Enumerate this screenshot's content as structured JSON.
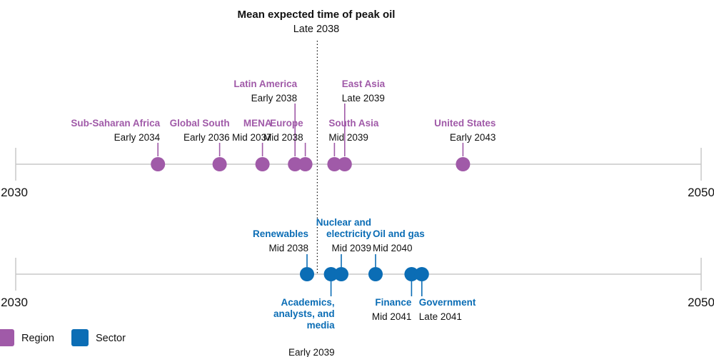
{
  "colors": {
    "region": "#a05aa8",
    "sector": "#0b6db5",
    "axis": "#c8c8c8",
    "text": "#111111"
  },
  "chart_data": {
    "type": "scatter",
    "title": "Mean expected time of peak oil",
    "subtitle": "Late 2038",
    "reference_value": 2038.8,
    "xlim": [
      2030,
      2050
    ],
    "axis_labels": [
      "2030",
      "2050"
    ],
    "legend": [
      {
        "name": "Region",
        "color": "#a05aa8"
      },
      {
        "name": "Sector",
        "color": "#0b6db5"
      }
    ],
    "series": [
      {
        "name": "Region",
        "points": [
          {
            "name": "Sub-Saharan Africa",
            "time": "Early 2034",
            "x": 2034.15
          },
          {
            "name": "Global South",
            "time": "Early 2036",
            "x": 2035.95
          },
          {
            "name": "MENA",
            "time": "Mid 2037",
            "x": 2037.2
          },
          {
            "name": "Latin America",
            "time": "Early 2038",
            "x": 2038.15
          },
          {
            "name": "Europe",
            "time": "Mid 2038",
            "x": 2038.45
          },
          {
            "name": "South Asia",
            "time": "Mid 2039",
            "x": 2039.3
          },
          {
            "name": "East Asia",
            "time": "Late 2039",
            "x": 2039.6
          },
          {
            "name": "United States",
            "time": "Early 2043",
            "x": 2043.05
          }
        ]
      },
      {
        "name": "Sector",
        "points": [
          {
            "name": "Renewables",
            "time": "Mid 2038",
            "x": 2038.5
          },
          {
            "name": "Academics, analysts, and media",
            "time": "Early 2039",
            "x": 2039.2
          },
          {
            "name": "Nuclear and electricity",
            "time": "Mid 2039",
            "x": 2039.5
          },
          {
            "name": "Oil and gas",
            "time": "Mid 2040",
            "x": 2040.5
          },
          {
            "name": "Finance",
            "time": "Mid 2041",
            "x": 2041.55
          },
          {
            "name": "Government",
            "time": "Late 2041",
            "x": 2041.85
          }
        ]
      }
    ]
  }
}
